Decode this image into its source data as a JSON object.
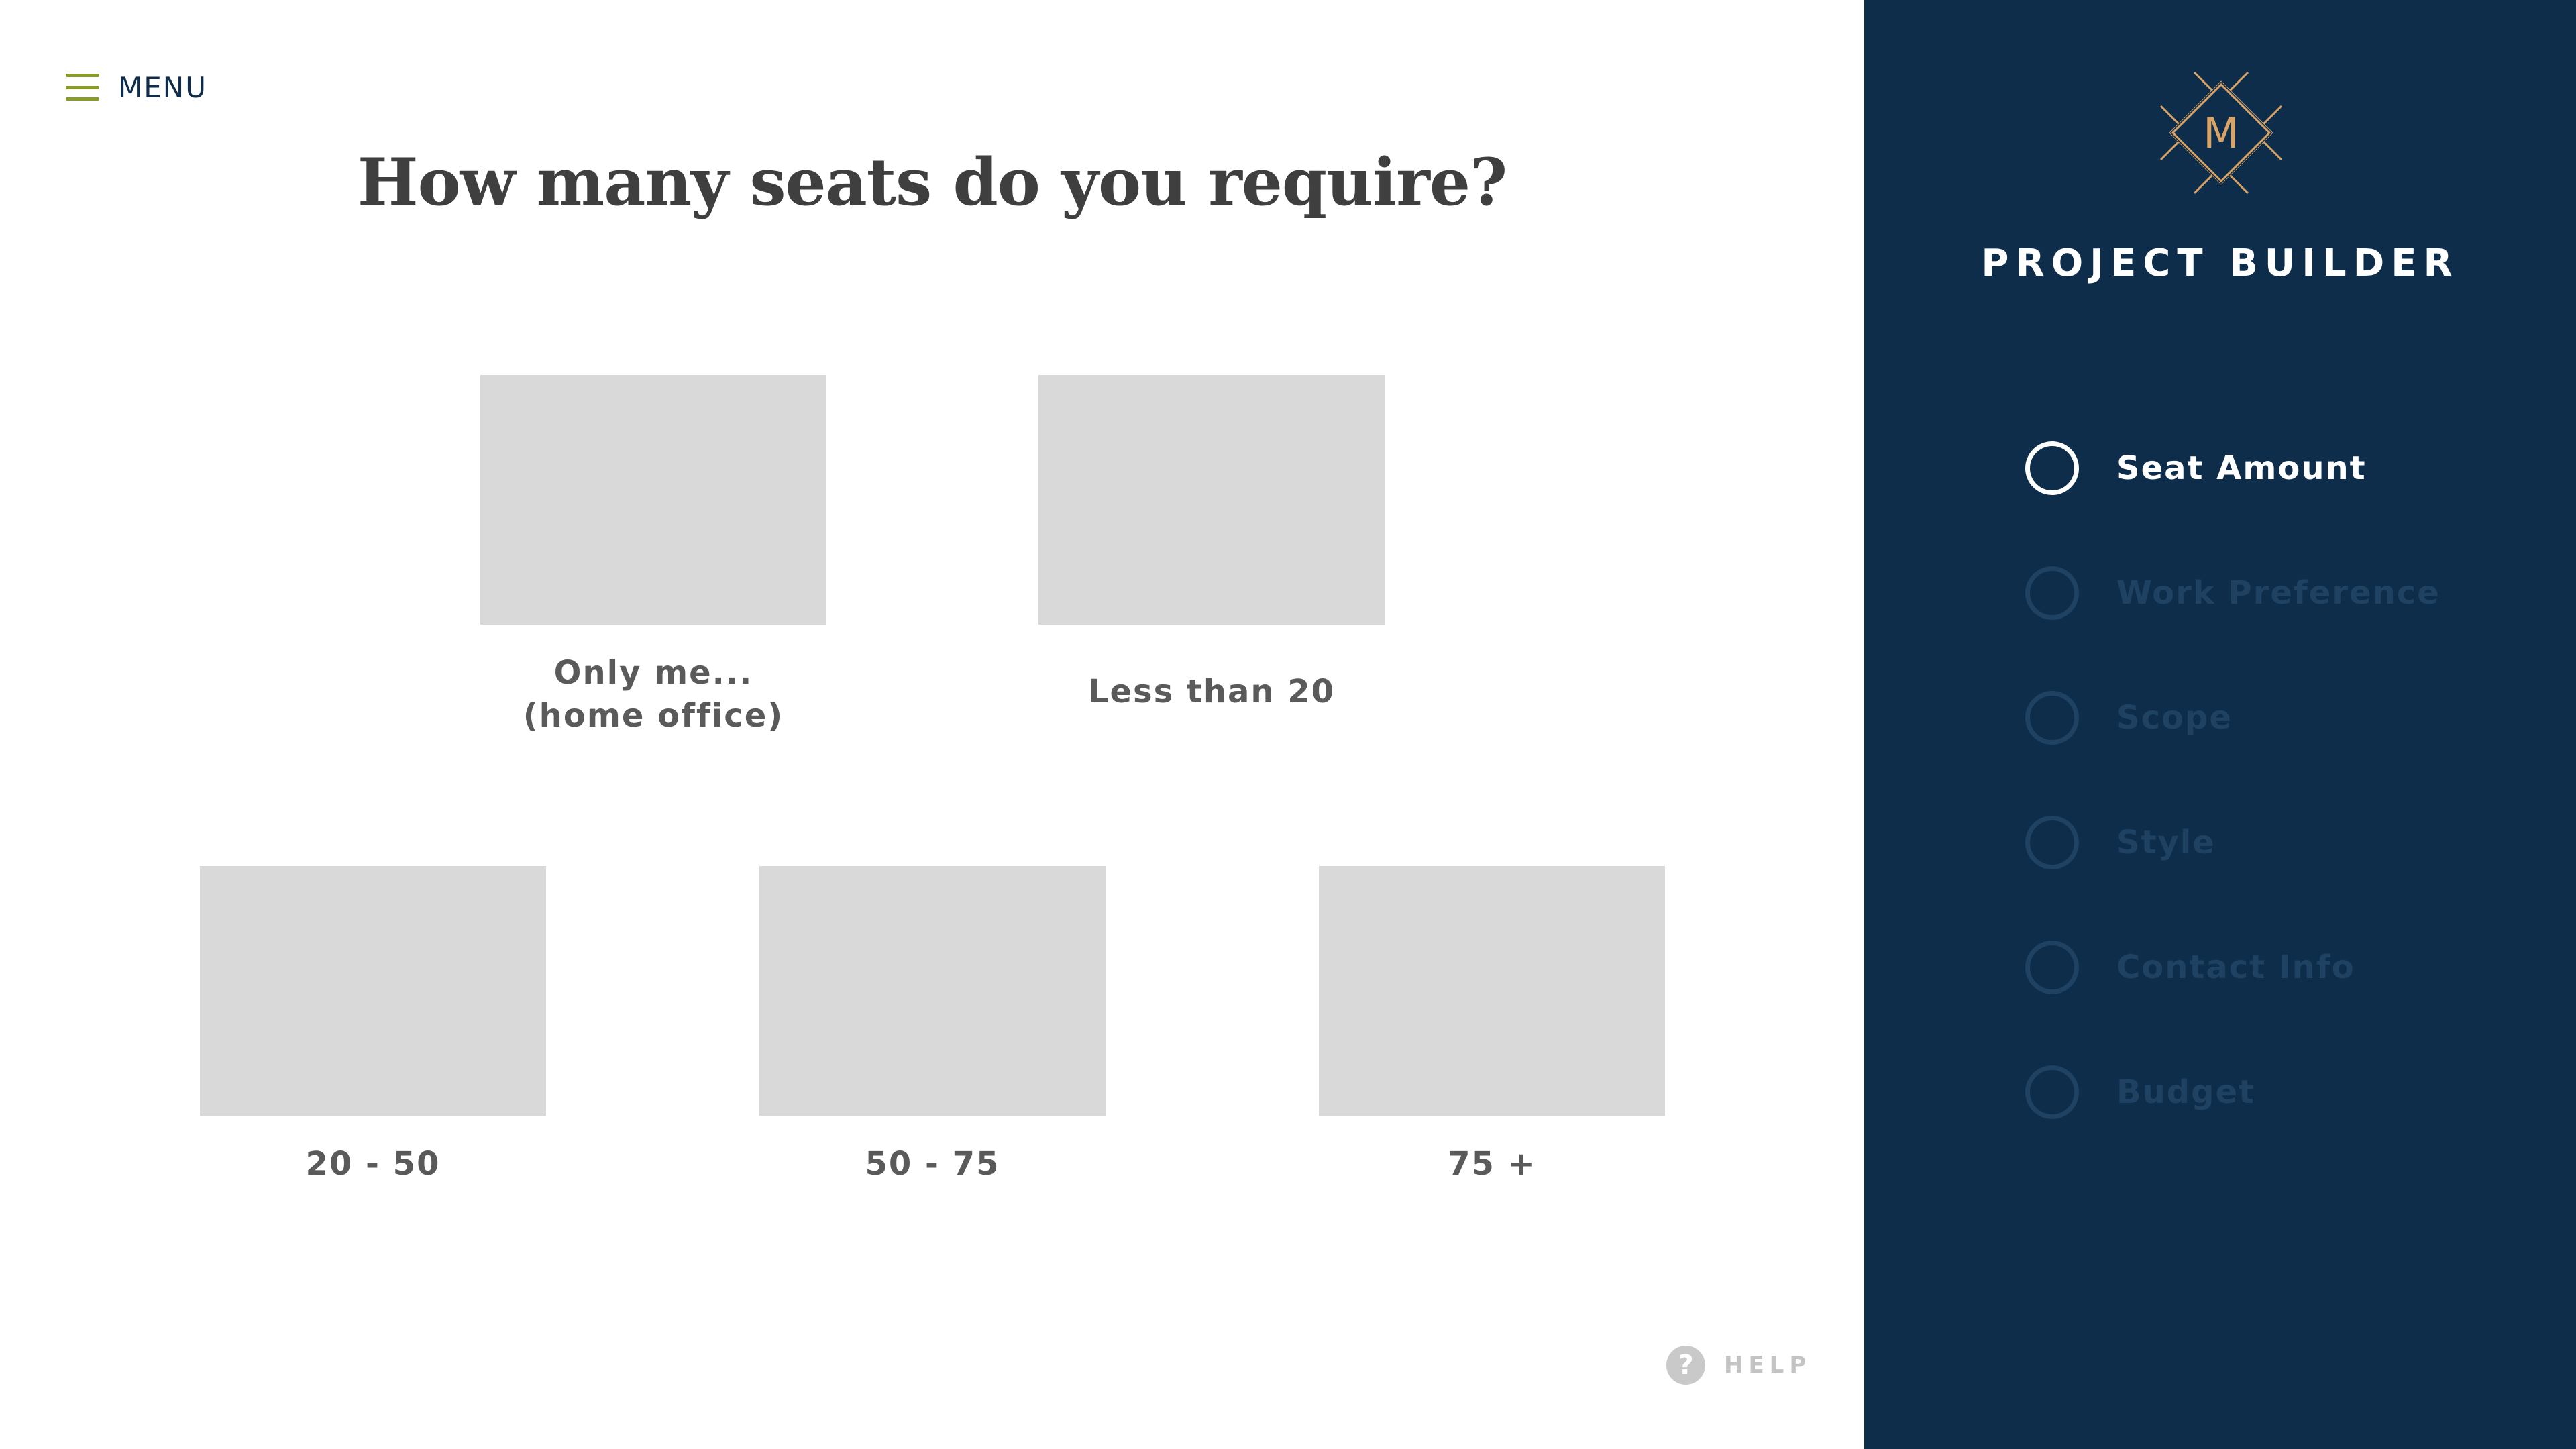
{
  "menu": {
    "label": "MENU",
    "icon": "hamburger-icon",
    "icon_color": "#8a9a2b"
  },
  "main": {
    "title": "How many seats do you require?",
    "options": [
      {
        "label": "Only me...\n(home office)"
      },
      {
        "label": "Less than 20"
      },
      {
        "label": "20 - 50"
      },
      {
        "label": "50 - 75"
      },
      {
        "label": "75 +"
      }
    ]
  },
  "help": {
    "icon_glyph": "?",
    "label": "HELP"
  },
  "sidebar": {
    "background": "#0d2d4b",
    "logo_letter": "M",
    "logo_color": "#d9a466",
    "title": "PROJECT BUILDER",
    "steps": [
      {
        "label": "Seat Amount",
        "active": true
      },
      {
        "label": "Work Preference",
        "active": false
      },
      {
        "label": "Scope",
        "active": false
      },
      {
        "label": "Style",
        "active": false
      },
      {
        "label": "Contact Info",
        "active": false
      },
      {
        "label": "Budget",
        "active": false
      }
    ]
  }
}
